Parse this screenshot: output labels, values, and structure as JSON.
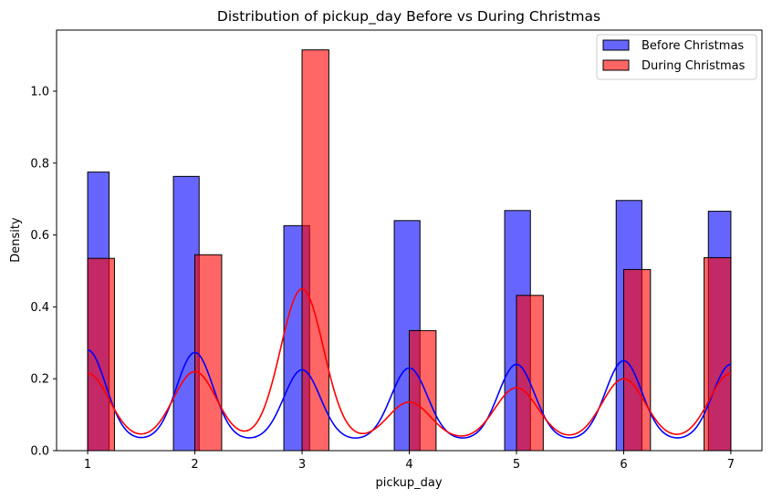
{
  "chart_data": {
    "type": "bar",
    "title": "Distribution of pickup_day Before vs During Christmas",
    "xlabel": "pickup_day",
    "ylabel": "Density",
    "xlim": [
      0.71,
      7.29
    ],
    "ylim": [
      0,
      1.17
    ],
    "xticks": [
      1,
      2,
      3,
      4,
      5,
      6,
      7
    ],
    "yticks": [
      0.0,
      0.2,
      0.4,
      0.6,
      0.8,
      1.0
    ],
    "ytick_labels": [
      "0.0",
      "0.2",
      "0.4",
      "0.6",
      "0.8",
      "1.0"
    ],
    "legend_position": "top-right",
    "series": [
      {
        "name": "Before Christmas",
        "color": "#0000ff",
        "bars": [
          {
            "x0": 1.0,
            "x1": 1.2,
            "value": 0.775
          },
          {
            "x0": 1.8,
            "x1": 2.04,
            "value": 0.763
          },
          {
            "x0": 2.83,
            "x1": 3.07,
            "value": 0.626
          },
          {
            "x0": 3.86,
            "x1": 4.1,
            "value": 0.64
          },
          {
            "x0": 4.89,
            "x1": 5.13,
            "value": 0.668
          },
          {
            "x0": 5.93,
            "x1": 6.17,
            "value": 0.696
          },
          {
            "x0": 6.79,
            "x1": 7.0,
            "value": 0.666
          }
        ],
        "kde_peaks": [
          {
            "x": 1.0,
            "y": 0.28
          },
          {
            "x": 2.0,
            "y": 0.273
          },
          {
            "x": 3.0,
            "y": 0.225
          },
          {
            "x": 4.0,
            "y": 0.23
          },
          {
            "x": 5.0,
            "y": 0.24
          },
          {
            "x": 6.0,
            "y": 0.25
          },
          {
            "x": 7.0,
            "y": 0.24
          }
        ],
        "kde_width": 0.17,
        "kde_base": 0.03
      },
      {
        "name": "During Christmas",
        "color": "#ff0000",
        "bars": [
          {
            "x0": 1.0,
            "x1": 1.25,
            "value": 0.535
          },
          {
            "x0": 2.0,
            "x1": 2.25,
            "value": 0.545
          },
          {
            "x0": 3.0,
            "x1": 3.25,
            "value": 1.115
          },
          {
            "x0": 4.0,
            "x1": 4.25,
            "value": 0.334
          },
          {
            "x0": 5.0,
            "x1": 5.25,
            "value": 0.432
          },
          {
            "x0": 6.0,
            "x1": 6.25,
            "value": 0.504
          },
          {
            "x0": 6.75,
            "x1": 7.0,
            "value": 0.537
          }
        ],
        "kde_peaks": [
          {
            "x": 1.0,
            "y": 0.215
          },
          {
            "x": 2.0,
            "y": 0.22
          },
          {
            "x": 3.0,
            "y": 0.45
          },
          {
            "x": 4.0,
            "y": 0.135
          },
          {
            "x": 5.0,
            "y": 0.175
          },
          {
            "x": 6.0,
            "y": 0.2
          },
          {
            "x": 7.0,
            "y": 0.215
          }
        ],
        "kde_width": 0.2,
        "kde_base": 0.03
      }
    ]
  }
}
